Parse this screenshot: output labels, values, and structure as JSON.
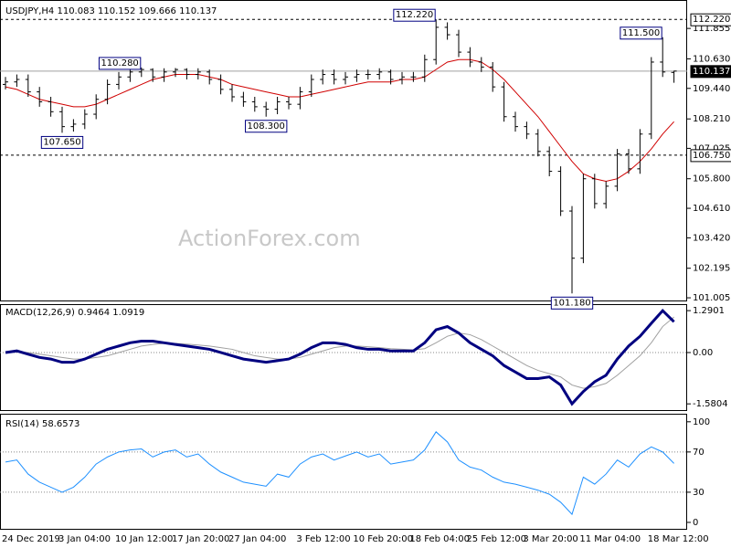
{
  "chart_data": [
    {
      "type": "candlestick",
      "title": "USDJPY,H4 110.083 110.152 109.666 110.137",
      "watermark": "ActionForex.com",
      "color": "#000000",
      "categories": [
        "24 Dec 2019",
        null,
        null,
        null,
        null,
        "3 Jan 04:00",
        null,
        null,
        null,
        null,
        "10 Jan 12:00",
        null,
        null,
        null,
        null,
        "17 Jan 20:00",
        null,
        null,
        null,
        null,
        "27 Jan 04:00",
        null,
        null,
        null,
        null,
        null,
        "3 Feb 12:00",
        null,
        null,
        null,
        null,
        "10 Feb 20:00",
        null,
        null,
        null,
        null,
        "18 Feb 04:00",
        null,
        null,
        null,
        null,
        "25 Feb 12:00",
        null,
        null,
        null,
        null,
        "3 Mar 20:00",
        null,
        null,
        null,
        null,
        "11 Mar 04:00",
        null,
        null,
        null,
        null,
        null,
        "18 Mar 12:00",
        null,
        null
      ],
      "open": [
        109.6,
        109.7,
        109.8,
        109.3,
        108.9,
        108.5,
        107.9,
        108.0,
        108.4,
        109.0,
        109.6,
        109.9,
        110.1,
        110.2,
        109.9,
        110.1,
        110.2,
        110.0,
        110.1,
        109.8,
        109.4,
        109.1,
        108.9,
        108.7,
        108.6,
        108.9,
        108.8,
        109.3,
        109.8,
        110.0,
        109.8,
        109.9,
        110.0,
        110.0,
        110.1,
        109.8,
        109.9,
        109.9,
        110.6,
        111.9,
        111.6,
        110.9,
        110.5,
        110.3,
        109.5,
        108.3,
        107.9,
        107.6,
        106.9,
        106.1,
        104.5,
        102.6,
        105.8,
        104.8,
        105.5,
        106.8,
        106.2,
        107.6,
        110.5,
        110.083
      ],
      "high": [
        109.9,
        110.0,
        110.0,
        109.5,
        109.1,
        108.7,
        108.2,
        108.6,
        109.2,
        109.8,
        110.1,
        110.25,
        110.28,
        110.25,
        110.25,
        110.26,
        110.25,
        110.25,
        110.2,
        110.0,
        109.6,
        109.3,
        109.1,
        108.9,
        109.1,
        109.1,
        109.5,
        110.0,
        110.2,
        110.2,
        110.1,
        110.2,
        110.2,
        110.25,
        110.2,
        110.1,
        110.1,
        110.8,
        112.22,
        112.1,
        111.8,
        111.1,
        110.7,
        110.5,
        109.7,
        108.5,
        108.1,
        107.8,
        107.1,
        106.3,
        104.7,
        106.0,
        106.0,
        105.7,
        107.0,
        107.0,
        107.8,
        110.7,
        111.5,
        110.152
      ],
      "low": [
        109.4,
        109.5,
        109.1,
        108.7,
        108.3,
        107.65,
        107.7,
        107.8,
        108.2,
        108.8,
        109.4,
        109.7,
        109.9,
        109.7,
        109.7,
        109.9,
        109.8,
        109.8,
        109.6,
        109.2,
        108.9,
        108.7,
        108.5,
        108.3,
        108.4,
        108.6,
        108.6,
        109.1,
        109.6,
        109.6,
        109.6,
        109.7,
        109.8,
        109.8,
        109.6,
        109.6,
        109.7,
        109.7,
        110.4,
        111.4,
        110.7,
        110.3,
        110.1,
        109.3,
        108.1,
        107.7,
        107.4,
        106.7,
        105.9,
        104.3,
        101.18,
        102.4,
        104.6,
        104.6,
        105.3,
        106.0,
        106.0,
        107.4,
        109.9,
        109.666
      ],
      "close": [
        109.7,
        109.8,
        109.3,
        108.9,
        108.5,
        107.9,
        108.0,
        108.4,
        109.0,
        109.6,
        109.9,
        110.1,
        110.2,
        109.9,
        110.1,
        110.2,
        110.0,
        110.1,
        109.8,
        109.4,
        109.1,
        108.9,
        108.7,
        108.6,
        108.9,
        108.8,
        109.3,
        109.8,
        110.0,
        109.8,
        109.9,
        110.0,
        110.0,
        110.1,
        109.8,
        109.9,
        109.9,
        110.6,
        111.9,
        111.6,
        110.9,
        110.5,
        110.3,
        109.5,
        108.3,
        107.9,
        107.6,
        106.9,
        106.1,
        104.5,
        102.6,
        105.8,
        104.8,
        105.5,
        106.8,
        106.2,
        107.6,
        110.5,
        110.1,
        110.137
      ],
      "high_labels": [
        null,
        null,
        null,
        null,
        null,
        null,
        null,
        null,
        null,
        null,
        null,
        null,
        "110.280",
        null,
        null,
        null,
        null,
        null,
        null,
        null,
        null,
        null,
        null,
        null,
        null,
        null,
        null,
        null,
        null,
        null,
        null,
        null,
        null,
        null,
        null,
        null,
        null,
        null,
        "112.220",
        null,
        null,
        null,
        null,
        null,
        null,
        null,
        null,
        null,
        null,
        null,
        null,
        null,
        null,
        null,
        null,
        null,
        null,
        null,
        "111.500",
        null
      ],
      "low_labels": [
        null,
        null,
        null,
        null,
        null,
        "107.650",
        null,
        null,
        null,
        null,
        null,
        null,
        null,
        null,
        null,
        null,
        null,
        null,
        null,
        null,
        null,
        null,
        null,
        "108.300",
        null,
        null,
        null,
        null,
        null,
        null,
        null,
        null,
        null,
        null,
        null,
        null,
        null,
        null,
        null,
        null,
        null,
        null,
        null,
        null,
        null,
        null,
        null,
        null,
        null,
        null,
        "101.180",
        null,
        null,
        null,
        null,
        null,
        null,
        null,
        null,
        null
      ],
      "overlay": {
        "color": "#d00000",
        "values": [
          109.5,
          109.4,
          109.2,
          109.0,
          108.9,
          108.8,
          108.7,
          108.7,
          108.8,
          109.0,
          109.2,
          109.4,
          109.6,
          109.8,
          109.9,
          110.0,
          110.0,
          110.0,
          109.9,
          109.8,
          109.6,
          109.5,
          109.4,
          109.3,
          109.2,
          109.1,
          109.1,
          109.2,
          109.3,
          109.4,
          109.5,
          109.6,
          109.7,
          109.7,
          109.7,
          109.8,
          109.8,
          109.9,
          110.2,
          110.5,
          110.6,
          110.6,
          110.5,
          110.2,
          109.8,
          109.3,
          108.8,
          108.3,
          107.7,
          107.1,
          106.5,
          106.0,
          105.8,
          105.7,
          105.8,
          106.1,
          106.5,
          107.0,
          107.6,
          108.1
        ]
      },
      "hlines": [
        {
          "value": 112.22,
          "label": "112.220"
        },
        {
          "value": 106.75,
          "label": "106.750"
        }
      ],
      "last_price": {
        "value": 110.137,
        "label": "110.137"
      },
      "ylim": [
        100.86,
        113.0
      ],
      "yticks": [
        111.855,
        {
          "value": 110.63,
          "label": "110.630"
        },
        {
          "value": 109.44,
          "label": "109.440"
        },
        {
          "value": 108.21,
          "label": "108.210"
        },
        107.025,
        {
          "value": 105.8,
          "label": "105.800"
        },
        {
          "value": 104.61,
          "label": "104.610"
        },
        {
          "value": 103.42,
          "label": "103.420"
        },
        102.195,
        101.005
      ]
    },
    {
      "type": "line",
      "title": "MACD(12,26,9) 0.9464 1.0919",
      "series": [
        {
          "color": "#000080",
          "width": 3,
          "values": [
            0.0,
            0.05,
            -0.05,
            -0.15,
            -0.2,
            -0.3,
            -0.3,
            -0.2,
            -0.05,
            0.1,
            0.2,
            0.3,
            0.35,
            0.35,
            0.3,
            0.25,
            0.2,
            0.15,
            0.1,
            0.0,
            -0.1,
            -0.2,
            -0.25,
            -0.3,
            -0.25,
            -0.2,
            -0.05,
            0.15,
            0.3,
            0.3,
            0.25,
            0.15,
            0.1,
            0.1,
            0.05,
            0.05,
            0.05,
            0.3,
            0.7,
            0.8,
            0.6,
            0.3,
            0.1,
            -0.1,
            -0.4,
            -0.6,
            -0.8,
            -0.8,
            -0.75,
            -1.0,
            -1.58,
            -1.2,
            -0.9,
            -0.7,
            -0.2,
            0.2,
            0.5,
            0.9,
            1.29,
            0.9464
          ]
        },
        {
          "color": "#a0a0a0",
          "width": 1,
          "values": [
            0.0,
            0.02,
            0.0,
            -0.05,
            -0.1,
            -0.15,
            -0.2,
            -0.2,
            -0.15,
            -0.1,
            0.0,
            0.1,
            0.2,
            0.25,
            0.28,
            0.28,
            0.26,
            0.23,
            0.2,
            0.15,
            0.1,
            0.0,
            -0.1,
            -0.15,
            -0.2,
            -0.2,
            -0.15,
            -0.05,
            0.05,
            0.15,
            0.2,
            0.2,
            0.18,
            0.15,
            0.12,
            0.1,
            0.08,
            0.12,
            0.3,
            0.5,
            0.6,
            0.55,
            0.4,
            0.2,
            0.0,
            -0.2,
            -0.4,
            -0.55,
            -0.65,
            -0.75,
            -1.0,
            -1.1,
            -1.05,
            -0.95,
            -0.7,
            -0.4,
            -0.1,
            0.3,
            0.8,
            1.0919
          ]
        }
      ],
      "levels": [
        0
      ],
      "ylim": [
        -1.8,
        1.49
      ],
      "yticks": [
        1.2901,
        {
          "value": 0,
          "label": "0.00"
        },
        -1.5804
      ]
    },
    {
      "type": "line",
      "title": "RSI(14) 58.6573",
      "series": [
        {
          "color": "#1e90ff",
          "width": 1,
          "values": [
            60,
            62,
            48,
            40,
            35,
            30,
            35,
            45,
            58,
            65,
            70,
            72,
            73,
            65,
            70,
            72,
            65,
            68,
            58,
            50,
            45,
            40,
            38,
            36,
            48,
            45,
            58,
            65,
            68,
            62,
            66,
            70,
            65,
            68,
            58,
            60,
            62,
            72,
            90,
            80,
            62,
            55,
            52,
            45,
            40,
            38,
            35,
            32,
            28,
            20,
            8,
            45,
            38,
            48,
            62,
            55,
            68,
            75,
            70,
            58.6573
          ]
        }
      ],
      "levels": [
        70,
        30
      ],
      "ylim": [
        -7.3,
        108
      ],
      "yticks": [
        100,
        70,
        30,
        0
      ]
    }
  ]
}
